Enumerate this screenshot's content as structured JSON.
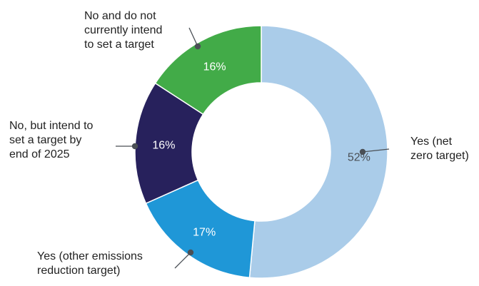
{
  "chart_data": {
    "type": "pie",
    "variant": "donut",
    "slices": [
      {
        "label": "Yes (net zero target)",
        "label_lines": [
          "Yes (net",
          "zero target)"
        ],
        "value": 52,
        "value_label": "52%",
        "color": "#aacce9"
      },
      {
        "label": "Yes (other emissions reduction target)",
        "label_lines": [
          "Yes (other emissions",
          "reduction target)"
        ],
        "value": 17,
        "value_label": "17%",
        "color": "#1f97d7"
      },
      {
        "label": "No, but intend to set a target by end of 2025",
        "label_lines": [
          "No, but intend to",
          "set a target by",
          "end of 2025"
        ],
        "value": 16,
        "value_label": "16%",
        "color": "#27215c"
      },
      {
        "label": "No and do not currently intend to set a target",
        "label_lines": [
          "No and do not",
          "currently intend",
          "to set a target"
        ],
        "value": 16,
        "value_label": "16%",
        "color": "#42ab48"
      }
    ]
  }
}
